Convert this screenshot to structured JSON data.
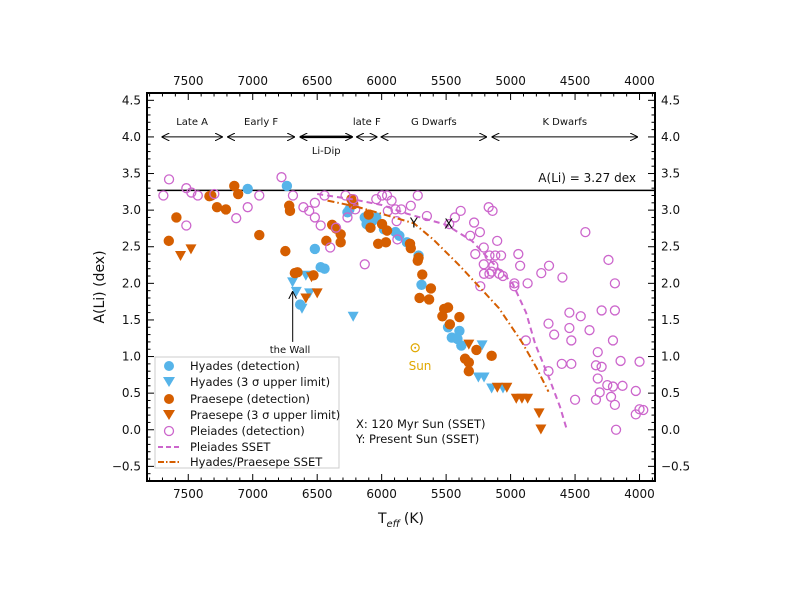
{
  "chart_data": {
    "type": "scatter",
    "xlabel": "T",
    "xlabel_sub": "eff",
    "xlabel_unit": "(K)",
    "ylabel": "A(Li) (dex)",
    "xlim": [
      7820,
      3880
    ],
    "ylim": [
      -0.7,
      4.6
    ],
    "x_reversed": true,
    "xticks": [
      7500,
      7000,
      6500,
      6000,
      5500,
      5000,
      4500,
      4000
    ],
    "yticks": [
      -0.5,
      0.0,
      0.5,
      1.0,
      1.5,
      2.0,
      2.5,
      3.0,
      3.5,
      4.0,
      4.5
    ],
    "ytick_labels": [
      "−0.5",
      "0.0",
      "0.5",
      "1.0",
      "1.5",
      "2.0",
      "2.5",
      "3.0",
      "3.5",
      "4.0",
      "4.5"
    ],
    "grid": false,
    "legend_placement": "lower-left",
    "colors": {
      "hyades": "#56b4e9",
      "praesepe": "#d55e00",
      "pleiades": "#cc66cc",
      "sun": "#e0a800"
    },
    "series": [
      {
        "name": "Hyades (detection)",
        "marker": "filled-circle",
        "color": "#56b4e9",
        "points": [
          [
            7039,
            3.29
          ],
          [
            6735,
            3.33
          ],
          [
            6518,
            2.47
          ],
          [
            6473,
            2.22
          ],
          [
            6443,
            2.2
          ],
          [
            6265,
            2.97
          ],
          [
            6250,
            3.01
          ],
          [
            6131,
            2.9
          ],
          [
            6117,
            2.81
          ],
          [
            6072,
            2.85
          ],
          [
            6042,
            2.9
          ],
          [
            6087,
            2.76
          ],
          [
            5982,
            2.74
          ],
          [
            5893,
            2.7
          ],
          [
            5863,
            2.65
          ],
          [
            5804,
            2.56
          ],
          [
            5714,
            2.38
          ],
          [
            6632,
            1.71
          ],
          [
            5691,
            1.98
          ],
          [
            5485,
            1.4
          ],
          [
            5456,
            1.26
          ],
          [
            5397,
            1.35
          ],
          [
            5382,
            1.15
          ],
          [
            5412,
            1.24
          ]
        ]
      },
      {
        "name": "Hyades (3 σ upper limit)",
        "marker": "triangle-down",
        "color": "#56b4e9",
        "points": [
          [
            6691,
            2.02
          ],
          [
            6662,
            1.89
          ],
          [
            6618,
            1.66
          ],
          [
            6559,
            1.87
          ],
          [
            6588,
            2.11
          ],
          [
            6221,
            1.55
          ],
          [
            5221,
            1.16
          ],
          [
            5250,
            0.72
          ],
          [
            5206,
            0.72
          ],
          [
            5147,
            0.57
          ],
          [
            5059,
            0.57
          ]
        ]
      },
      {
        "name": "Praesepe (detection)",
        "marker": "filled-circle",
        "color": "#d55e00",
        "points": [
          [
            7651,
            2.58
          ],
          [
            7592,
            2.9
          ],
          [
            7336,
            3.19
          ],
          [
            7321,
            3.2
          ],
          [
            7277,
            3.04
          ],
          [
            7208,
            3.01
          ],
          [
            7143,
            3.33
          ],
          [
            7113,
            3.22
          ],
          [
            6949,
            2.66
          ],
          [
            6747,
            2.44
          ],
          [
            6717,
            3.06
          ],
          [
            6711,
            2.99
          ],
          [
            6673,
            2.14
          ],
          [
            6429,
            2.58
          ],
          [
            6384,
            2.8
          ],
          [
            6354,
            2.75
          ],
          [
            6318,
            2.67
          ],
          [
            6318,
            2.56
          ],
          [
            6235,
            3.15
          ],
          [
            6220,
            3.08
          ],
          [
            6101,
            2.94
          ],
          [
            6087,
            2.76
          ],
          [
            6027,
            2.54
          ],
          [
            5967,
            2.56
          ],
          [
            5958,
            2.72
          ],
          [
            5997,
            2.81
          ],
          [
            5780,
            2.54
          ],
          [
            5774,
            2.48
          ],
          [
            5720,
            2.31
          ],
          [
            5714,
            2.35
          ],
          [
            5685,
            2.12
          ],
          [
            6653,
            2.15
          ],
          [
            6529,
            2.11
          ],
          [
            5706,
            1.8
          ],
          [
            5632,
            1.78
          ],
          [
            5618,
            1.93
          ],
          [
            5515,
            1.65
          ],
          [
            5485,
            1.67
          ],
          [
            5529,
            1.55
          ],
          [
            5397,
            1.54
          ],
          [
            5471,
            1.44
          ],
          [
            5353,
            0.97
          ],
          [
            5324,
            0.92
          ],
          [
            5324,
            0.8
          ],
          [
            5265,
            1.09
          ],
          [
            5147,
            1.01
          ]
        ]
      },
      {
        "name": "Praesepe (3 σ upper limit)",
        "marker": "triangle-down",
        "color": "#d55e00",
        "points": [
          [
            7560,
            2.38
          ],
          [
            7479,
            2.47
          ],
          [
            6588,
            1.8
          ],
          [
            6500,
            1.87
          ],
          [
            6544,
            2.09
          ],
          [
            5324,
            1.17
          ],
          [
            5103,
            0.58
          ],
          [
            5029,
            0.58
          ],
          [
            4956,
            0.43
          ],
          [
            4912,
            0.43
          ],
          [
            4868,
            0.43
          ],
          [
            4779,
            0.23
          ],
          [
            4765,
            0.01
          ]
        ]
      },
      {
        "name": "Pleiades (detection)",
        "marker": "open-circle",
        "color": "#cc66cc",
        "points": [
          [
            7649,
            3.42
          ],
          [
            7693,
            3.2
          ],
          [
            7515,
            3.3
          ],
          [
            7476,
            3.24
          ],
          [
            7426,
            3.2
          ],
          [
            7298,
            3.22
          ],
          [
            7515,
            2.79
          ],
          [
            7128,
            2.89
          ],
          [
            7039,
            3.04
          ],
          [
            6949,
            3.2
          ],
          [
            6777,
            3.45
          ],
          [
            6688,
            3.2
          ],
          [
            6607,
            3.04
          ],
          [
            6562,
            2.99
          ],
          [
            6518,
            3.1
          ],
          [
            6518,
            2.9
          ],
          [
            6473,
            2.79
          ],
          [
            6399,
            2.49
          ],
          [
            6443,
            3.2
          ],
          [
            6354,
            2.76
          ],
          [
            6280,
            3.2
          ],
          [
            6265,
            2.9
          ],
          [
            6220,
            3.15
          ],
          [
            6205,
            3.01
          ],
          [
            6131,
            2.26
          ],
          [
            6042,
            3.15
          ],
          [
            5997,
            3.2
          ],
          [
            5958,
            3.2
          ],
          [
            5923,
            3.13
          ],
          [
            5952,
            2.99
          ],
          [
            5893,
            3.01
          ],
          [
            5848,
            3.01
          ],
          [
            5884,
            2.85
          ],
          [
            5878,
            2.6
          ],
          [
            5774,
            3.06
          ],
          [
            5720,
            3.2
          ],
          [
            5649,
            2.92
          ],
          [
            5387,
            2.99
          ],
          [
            5432,
            2.9
          ],
          [
            5476,
            2.81
          ],
          [
            5283,
            2.83
          ],
          [
            5313,
            2.65
          ],
          [
            5238,
            2.7
          ],
          [
            5274,
            2.4
          ],
          [
            5208,
            2.49
          ],
          [
            5170,
            3.04
          ],
          [
            5140,
            2.99
          ],
          [
            5104,
            2.58
          ],
          [
            5119,
            2.38
          ],
          [
            5074,
            2.38
          ],
          [
            5164,
            2.38
          ],
          [
            5208,
            2.26
          ],
          [
            5134,
            2.24
          ],
          [
            4940,
            2.4
          ],
          [
            4926,
            2.24
          ],
          [
            4702,
            2.24
          ],
          [
            4762,
            2.14
          ],
          [
            4420,
            2.7
          ],
          [
            4241,
            2.32
          ],
          [
            5164,
            2.13
          ],
          [
            5060,
            2.1
          ],
          [
            4598,
            2.08
          ],
          [
            5206,
            2.13
          ],
          [
            5147,
            2.16
          ],
          [
            5088,
            2.13
          ],
          [
            5235,
            1.96
          ],
          [
            4971,
            2.0
          ],
          [
            4971,
            1.96
          ],
          [
            4868,
            2.0
          ],
          [
            4191,
            2.0
          ],
          [
            4544,
            1.6
          ],
          [
            4456,
            1.55
          ],
          [
            4544,
            1.39
          ],
          [
            4662,
            1.3
          ],
          [
            4706,
            1.45
          ],
          [
            4388,
            1.36
          ],
          [
            4294,
            1.63
          ],
          [
            4191,
            1.63
          ],
          [
            4529,
            1.22
          ],
          [
            4882,
            1.22
          ],
          [
            4206,
            1.22
          ],
          [
            4324,
            1.06
          ],
          [
            4147,
            0.94
          ],
          [
            4000,
            0.93
          ],
          [
            4603,
            0.9
          ],
          [
            4529,
            0.9
          ],
          [
            4338,
            0.88
          ],
          [
            4294,
            0.86
          ],
          [
            4324,
            0.7
          ],
          [
            4250,
            0.61
          ],
          [
            4206,
            0.59
          ],
          [
            4309,
            0.51
          ],
          [
            4132,
            0.6
          ],
          [
            4029,
            0.53
          ],
          [
            4706,
            0.8
          ],
          [
            4500,
            0.41
          ],
          [
            4338,
            0.41
          ],
          [
            4221,
            0.45
          ],
          [
            4191,
            0.34
          ],
          [
            4029,
            0.21
          ],
          [
            4000,
            0.28
          ],
          [
            3971,
            0.27
          ],
          [
            4182,
            0.0
          ]
        ]
      },
      {
        "name": "Pleiades SSET",
        "marker": "dashed-line",
        "color": "#cc66cc",
        "points": [
          [
            6500,
            3.22
          ],
          [
            6200,
            3.14
          ],
          [
            6000,
            3.07
          ],
          [
            5800,
            2.95
          ],
          [
            5500,
            2.8
          ],
          [
            5300,
            2.58
          ],
          [
            5150,
            2.3
          ],
          [
            4985,
            2.0
          ],
          [
            4880,
            1.6
          ],
          [
            4809,
            1.17
          ],
          [
            4700,
            0.7
          ],
          [
            4618,
            0.32
          ],
          [
            4560,
            -0.02
          ]
        ]
      },
      {
        "name": "Hyades/Praesepe SSET",
        "marker": "dashdot-line",
        "color": "#d55e00",
        "points": [
          [
            6420,
            3.13
          ],
          [
            6200,
            3.05
          ],
          [
            6000,
            2.95
          ],
          [
            5750,
            2.82
          ],
          [
            5600,
            2.6
          ],
          [
            5400,
            2.25
          ],
          [
            5200,
            1.87
          ],
          [
            5090,
            1.66
          ],
          [
            4910,
            1.19
          ],
          [
            4800,
            0.85
          ],
          [
            4706,
            0.52
          ]
        ]
      }
    ],
    "reference_line": {
      "label": "A(Li) = 3.27 dex",
      "y": 3.27,
      "x_start": 7740
    },
    "regions": [
      {
        "label": "Late A",
        "from": 7700,
        "to": 7240,
        "bold": false
      },
      {
        "label": "Early F",
        "from": 7190,
        "to": 6680,
        "bold": false
      },
      {
        "label": "Li-Dip",
        "from": 6630,
        "to": 6230,
        "bold": true
      },
      {
        "label": "late F",
        "from": 6190,
        "to": 6040,
        "bold": false
      },
      {
        "label": "G Dwarfs",
        "from": 6000,
        "to": 5190,
        "bold": false
      },
      {
        "label": "K Dwarfs",
        "from": 5140,
        "to": 4020,
        "bold": false
      }
    ],
    "region_y": 4.0,
    "annotations": {
      "wall": {
        "label": "the Wall",
        "x": 6690,
        "y_from": 1.2,
        "y_to": 1.88
      },
      "sun": {
        "label": "Sun",
        "x": 5740,
        "y": 1.12
      },
      "x_marker": {
        "label": "X",
        "x": 5480,
        "y": 2.82
      },
      "y_marker": {
        "label": "Y",
        "x": 5750,
        "y": 2.83
      },
      "note_x": "X: 120 Myr Sun (SSET)",
      "note_y": "Y: Present Sun (SSET)"
    }
  }
}
